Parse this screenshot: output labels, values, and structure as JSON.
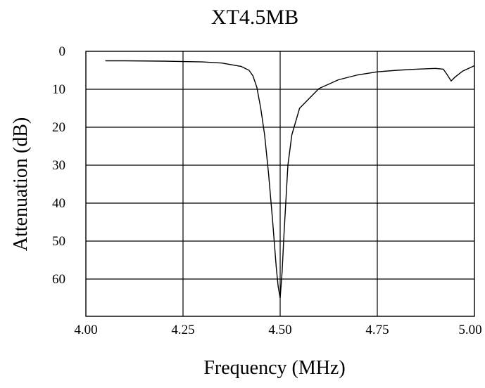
{
  "chart_data": {
    "type": "line",
    "title": "XT4.5MB",
    "xlabel": "Frequency (MHz)",
    "ylabel": "Attenuation (dB)",
    "xlim": [
      4.0,
      5.0
    ],
    "ylim": [
      0,
      70
    ],
    "y_inverted": true,
    "grid": true,
    "x_ticks": [
      "4.00",
      "4.25",
      "4.50",
      "4.75",
      "5.00"
    ],
    "y_ticks": [
      "0",
      "10",
      "20",
      "30",
      "40",
      "50",
      "60"
    ],
    "series": [
      {
        "color": "#000000",
        "x": [
          4.05,
          4.1,
          4.2,
          4.3,
          4.35,
          4.4,
          4.42,
          4.43,
          4.44,
          4.45,
          4.46,
          4.47,
          4.48,
          4.49,
          4.495,
          4.5,
          4.505,
          4.51,
          4.52,
          4.53,
          4.55,
          4.6,
          4.65,
          4.7,
          4.75,
          4.8,
          4.85,
          4.9,
          4.92,
          4.93,
          4.94,
          4.95,
          4.97,
          5.0
        ],
        "y": [
          2.5,
          2.5,
          2.6,
          2.8,
          3.1,
          4.0,
          5.0,
          6.5,
          9.5,
          15.0,
          22.0,
          32.0,
          44.0,
          57.0,
          62.0,
          65.0,
          58.0,
          48.0,
          30.0,
          22.0,
          15.0,
          9.8,
          7.5,
          6.2,
          5.4,
          5.0,
          4.7,
          4.5,
          4.7,
          6.2,
          7.8,
          6.8,
          5.2,
          3.8
        ]
      }
    ]
  }
}
